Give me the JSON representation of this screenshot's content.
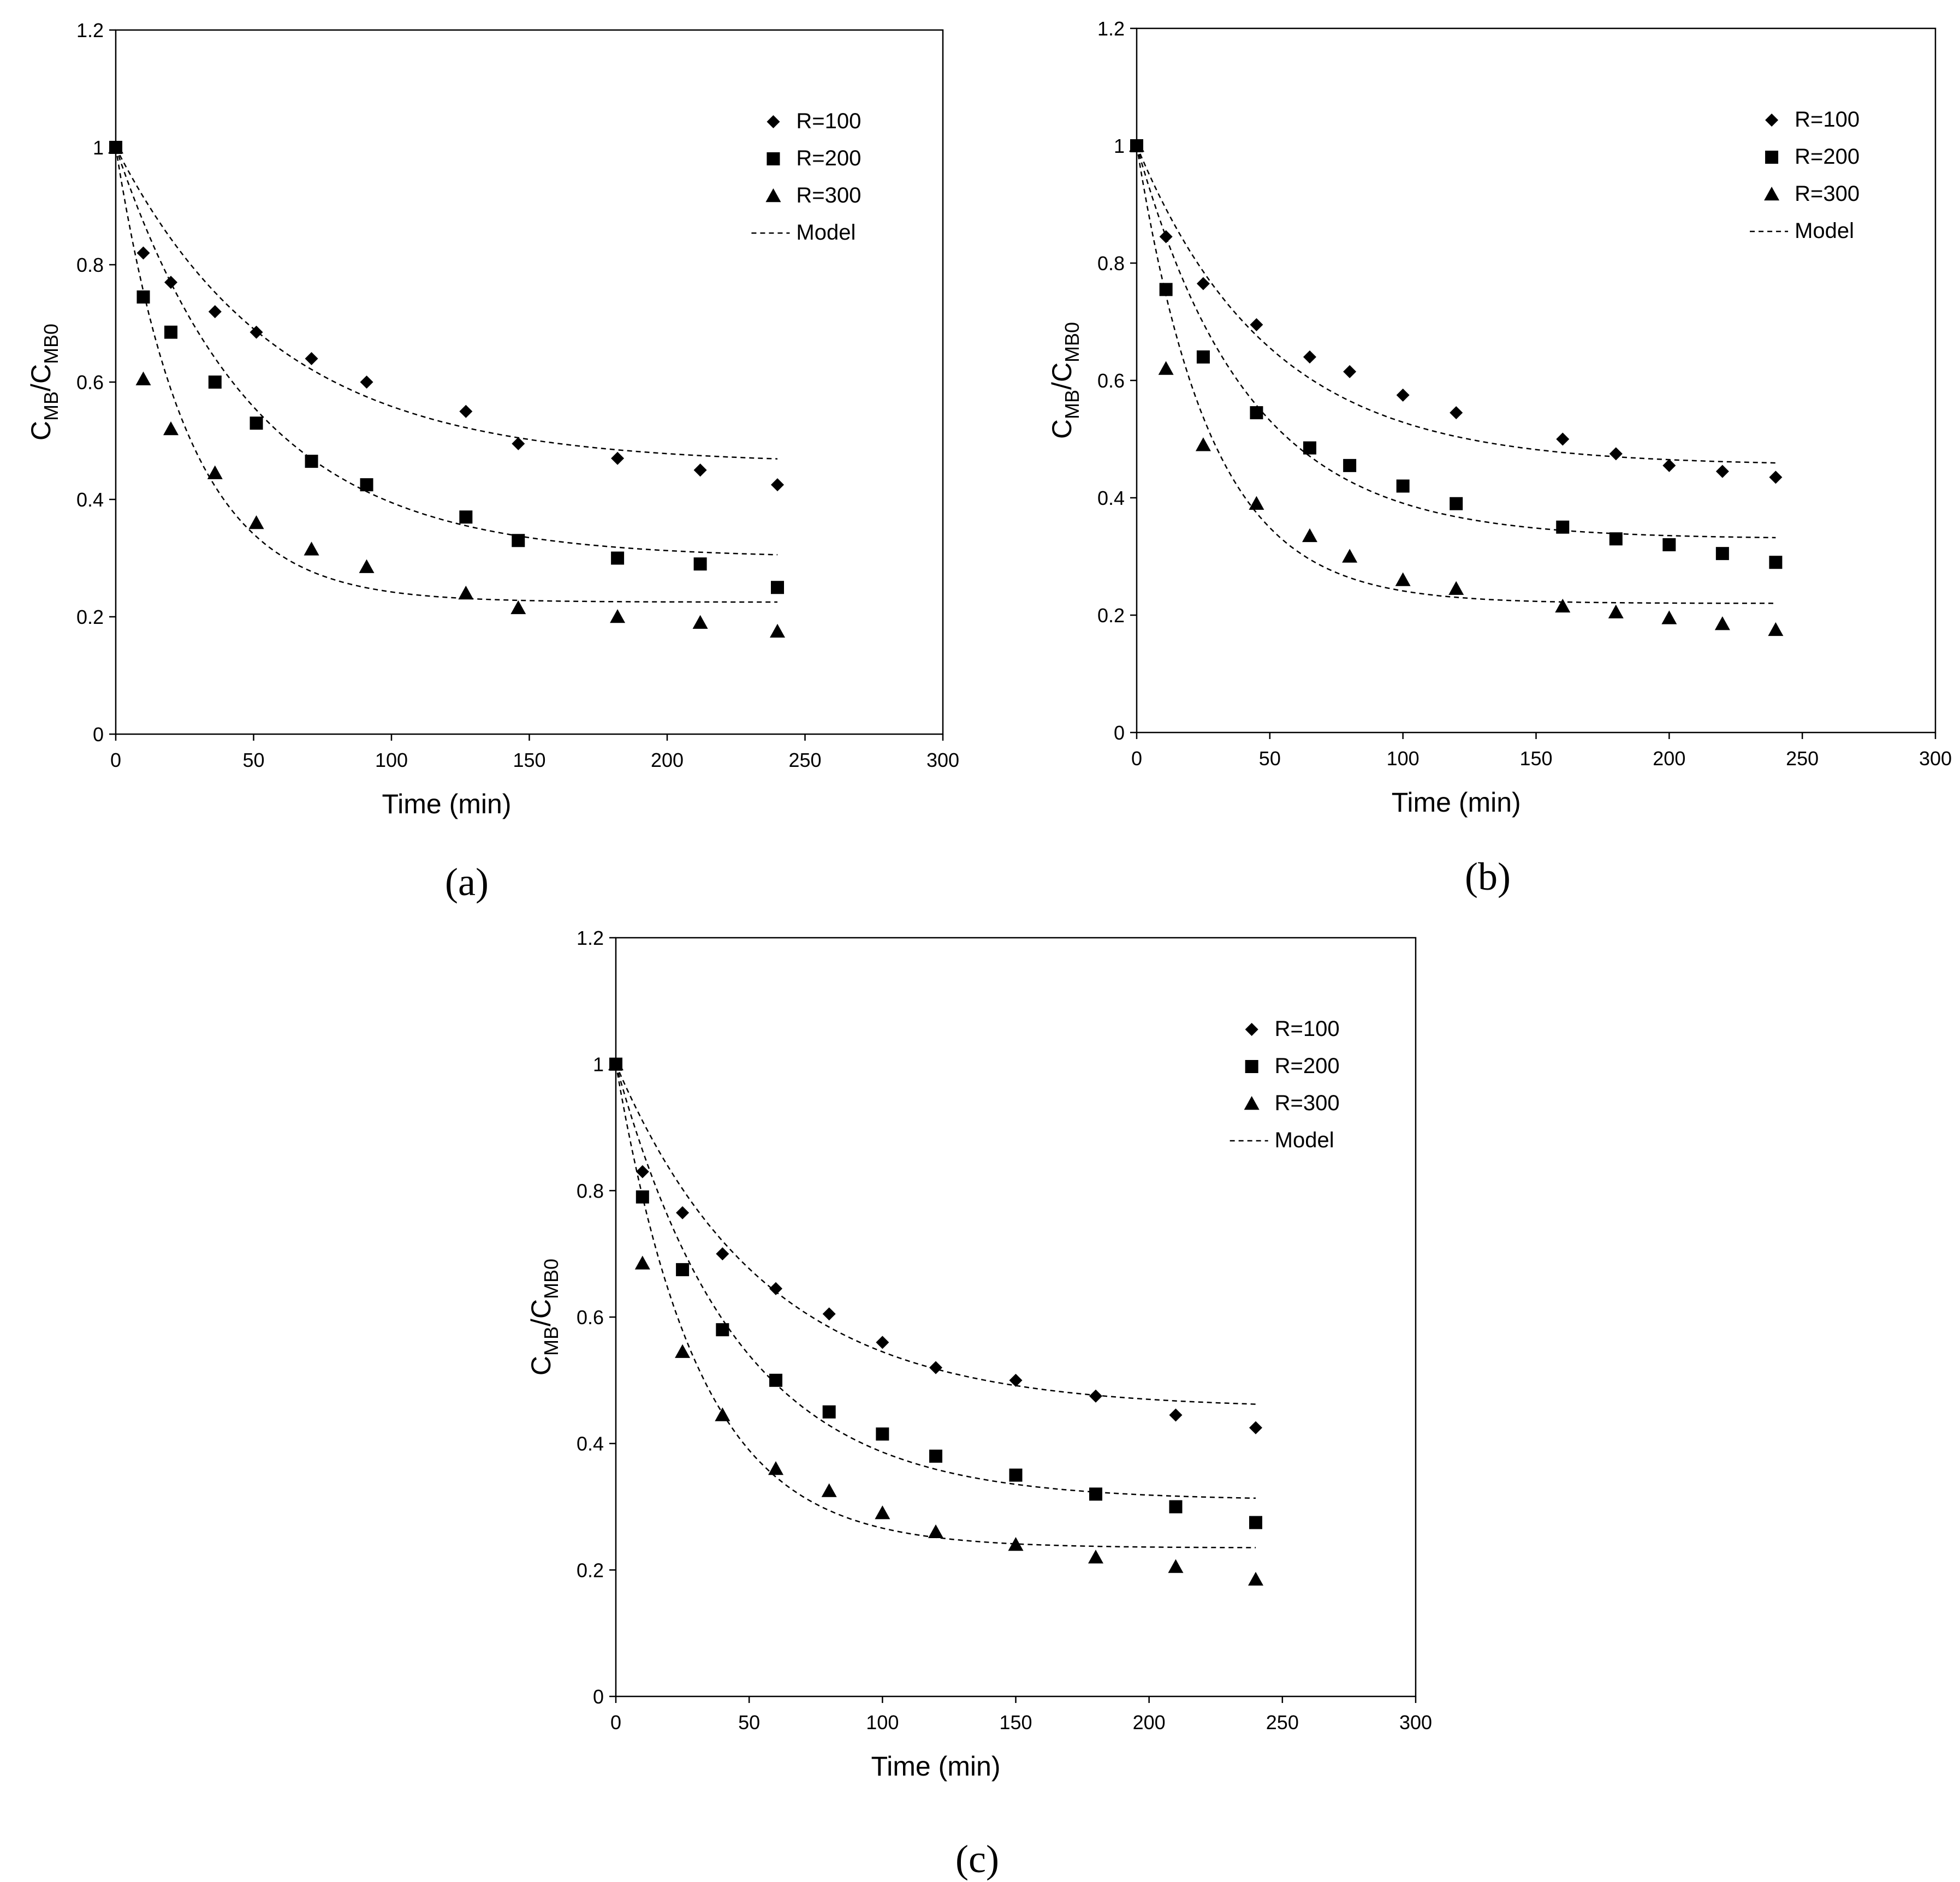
{
  "figure": {
    "captions": [
      "(a)",
      "(b)",
      "(c)"
    ],
    "colors": {
      "axes": "#000000",
      "markers": "#000000",
      "model_line": "#000000",
      "background": "#ffffff"
    }
  },
  "chart_data": [
    {
      "type": "scatter",
      "id": "a",
      "caption": "(a)",
      "xlabel": "Time (min)",
      "ylabel_main": "C",
      "ylabel_sub1": "MB",
      "ylabel_slash": "/C",
      "ylabel_sub2": "MB0",
      "xlim": [
        0,
        300
      ],
      "ylim": [
        0,
        1.2
      ],
      "xticks": [
        0,
        50,
        100,
        150,
        200,
        250,
        300
      ],
      "yticks": [
        0,
        0.2,
        0.4,
        0.6,
        0.8,
        1,
        1.2
      ],
      "xtick_labels": [
        "0",
        "50",
        "100",
        "150",
        "200",
        "250",
        "300"
      ],
      "ytick_labels": [
        "0",
        "0.2",
        "0.4",
        "0.6",
        "0.8",
        "1",
        "1.2"
      ],
      "legend_position": "top-right",
      "series": [
        {
          "name": "R=100",
          "marker": "diamond",
          "x": [
            0,
            10,
            20,
            36,
            51,
            71,
            91,
            127,
            146,
            182,
            212,
            240
          ],
          "y": [
            1.0,
            0.82,
            0.77,
            0.72,
            0.685,
            0.64,
            0.6,
            0.55,
            0.495,
            0.47,
            0.45,
            0.425
          ]
        },
        {
          "name": "R=200",
          "marker": "square",
          "x": [
            0,
            10,
            20,
            36,
            51,
            71,
            91,
            127,
            146,
            182,
            212,
            240
          ],
          "y": [
            1.0,
            0.745,
            0.685,
            0.6,
            0.53,
            0.465,
            0.425,
            0.37,
            0.33,
            0.3,
            0.29,
            0.25
          ]
        },
        {
          "name": "R=300",
          "marker": "triangle",
          "x": [
            0,
            10,
            20,
            36,
            51,
            71,
            91,
            127,
            146,
            182,
            212,
            240
          ],
          "y": [
            1.0,
            0.605,
            0.52,
            0.445,
            0.36,
            0.315,
            0.285,
            0.24,
            0.215,
            0.2,
            0.19,
            0.175
          ]
        }
      ],
      "model": {
        "name": "Model",
        "style": "dashed",
        "curves": [
          {
            "for": "R=100",
            "y_inf": 0.46,
            "k": 0.017,
            "x_end": 240
          },
          {
            "for": "R=200",
            "y_inf": 0.3,
            "k": 0.02,
            "x_end": 240
          },
          {
            "for": "R=300",
            "y_inf": 0.225,
            "k": 0.038,
            "x_end": 240
          }
        ]
      }
    },
    {
      "type": "scatter",
      "id": "b",
      "caption": "(b)",
      "xlabel": "Time (min)",
      "ylabel_main": "C",
      "ylabel_sub1": "MB",
      "ylabel_slash": "/C",
      "ylabel_sub2": "MB0",
      "xlim": [
        0,
        300
      ],
      "ylim": [
        0,
        1.2
      ],
      "xticks": [
        0,
        50,
        100,
        150,
        200,
        250,
        300
      ],
      "yticks": [
        0,
        0.2,
        0.4,
        0.6,
        0.8,
        1,
        1.2
      ],
      "xtick_labels": [
        "0",
        "50",
        "100",
        "150",
        "200",
        "250",
        "300"
      ],
      "ytick_labels": [
        "0",
        "0.2",
        "0.4",
        "0.6",
        "0.8",
        "1",
        "1.2"
      ],
      "legend_position": "top-right",
      "series": [
        {
          "name": "R=100",
          "marker": "diamond",
          "x": [
            0,
            11,
            25,
            45,
            65,
            80,
            100,
            120,
            160,
            180,
            200,
            220,
            240
          ],
          "y": [
            1.0,
            0.845,
            0.765,
            0.695,
            0.64,
            0.615,
            0.575,
            0.545,
            0.5,
            0.475,
            0.455,
            0.445,
            0.435
          ]
        },
        {
          "name": "R=200",
          "marker": "square",
          "x": [
            0,
            11,
            25,
            45,
            65,
            80,
            100,
            120,
            160,
            180,
            200,
            220,
            240
          ],
          "y": [
            1.0,
            0.755,
            0.64,
            0.545,
            0.485,
            0.455,
            0.42,
            0.39,
            0.35,
            0.33,
            0.32,
            0.305,
            0.29
          ]
        },
        {
          "name": "R=300",
          "marker": "triangle",
          "x": [
            0,
            11,
            25,
            45,
            65,
            80,
            100,
            120,
            160,
            180,
            200,
            220,
            240
          ],
          "y": [
            1.0,
            0.62,
            0.49,
            0.39,
            0.335,
            0.3,
            0.26,
            0.245,
            0.215,
            0.205,
            0.195,
            0.185,
            0.175
          ]
        }
      ],
      "model": {
        "name": "Model",
        "style": "dashed",
        "curves": [
          {
            "for": "R=100",
            "y_inf": 0.455,
            "k": 0.02,
            "x_end": 240
          },
          {
            "for": "R=200",
            "y_inf": 0.33,
            "k": 0.024,
            "x_end": 240
          },
          {
            "for": "R=300",
            "y_inf": 0.22,
            "k": 0.036,
            "x_end": 240
          }
        ]
      }
    },
    {
      "type": "scatter",
      "id": "c",
      "caption": "(c)",
      "xlabel": "Time (min)",
      "ylabel_main": "C",
      "ylabel_sub1": "MB",
      "ylabel_slash": "/C",
      "ylabel_sub2": "MB0",
      "xlim": [
        0,
        300
      ],
      "ylim": [
        0,
        1.2
      ],
      "xticks": [
        0,
        50,
        100,
        150,
        200,
        250,
        300
      ],
      "yticks": [
        0,
        0.2,
        0.4,
        0.6,
        0.8,
        1,
        1.2
      ],
      "xtick_labels": [
        "0",
        "50",
        "100",
        "150",
        "200",
        "250",
        "300"
      ],
      "ytick_labels": [
        "0",
        "0.2",
        "0.4",
        "0.6",
        "0.8",
        "1",
        "1.2"
      ],
      "legend_position": "top-right",
      "series": [
        {
          "name": "R=100",
          "marker": "diamond",
          "x": [
            0,
            10,
            25,
            40,
            60,
            80,
            100,
            120,
            150,
            180,
            210,
            240
          ],
          "y": [
            1.0,
            0.83,
            0.765,
            0.7,
            0.645,
            0.605,
            0.56,
            0.52,
            0.5,
            0.475,
            0.445,
            0.425
          ]
        },
        {
          "name": "R=200",
          "marker": "square",
          "x": [
            0,
            10,
            25,
            40,
            60,
            80,
            100,
            120,
            150,
            180,
            210,
            240
          ],
          "y": [
            1.0,
            0.79,
            0.675,
            0.58,
            0.5,
            0.45,
            0.415,
            0.38,
            0.35,
            0.32,
            0.3,
            0.275
          ]
        },
        {
          "name": "R=300",
          "marker": "triangle",
          "x": [
            0,
            10,
            25,
            40,
            60,
            80,
            100,
            120,
            150,
            180,
            210,
            240
          ],
          "y": [
            1.0,
            0.685,
            0.545,
            0.445,
            0.36,
            0.325,
            0.29,
            0.26,
            0.24,
            0.22,
            0.205,
            0.185
          ]
        }
      ],
      "model": {
        "name": "Model",
        "style": "dashed",
        "curves": [
          {
            "for": "R=100",
            "y_inf": 0.455,
            "k": 0.018,
            "x_end": 240
          },
          {
            "for": "R=200",
            "y_inf": 0.31,
            "k": 0.022,
            "x_end": 240
          },
          {
            "for": "R=300",
            "y_inf": 0.235,
            "k": 0.032,
            "x_end": 240
          }
        ]
      }
    }
  ]
}
